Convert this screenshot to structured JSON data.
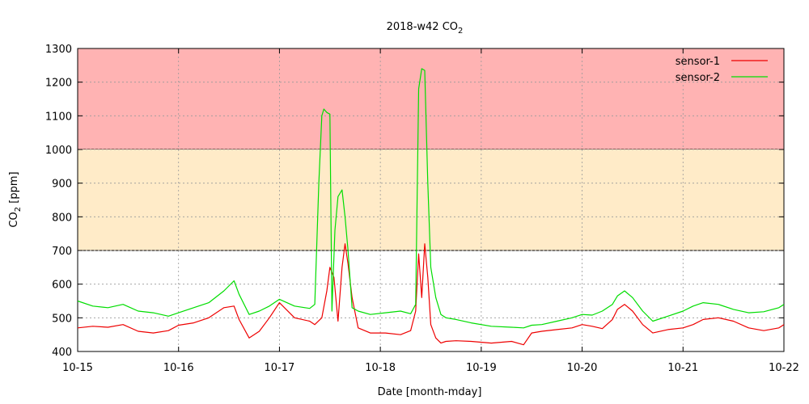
{
  "chart_data": {
    "type": "line",
    "title": "2018-w42 CO",
    "title_sub": "2",
    "xlabel": "Date [month-mday]",
    "ylabel": "CO",
    "ylabel_sub": "2",
    "ylabel_unit": " [ppm]",
    "xlim": [
      "10-15",
      "10-22"
    ],
    "ylim": [
      400,
      1300
    ],
    "x_ticks": [
      "10-15",
      "10-16",
      "10-17",
      "10-18",
      "10-19",
      "10-20",
      "10-21",
      "10-22"
    ],
    "y_ticks": [
      400,
      500,
      600,
      700,
      800,
      900,
      1000,
      1100,
      1200,
      1300
    ],
    "grid": true,
    "legend_position": "top-right",
    "bands": [
      {
        "from": 1000,
        "to": 1300,
        "color": "#ffb3b3"
      },
      {
        "from": 700,
        "to": 1000,
        "color": "#ffebc8"
      }
    ],
    "series": [
      {
        "name": "sensor-1",
        "color": "#ee0000",
        "x": [
          0,
          0.15,
          0.3,
          0.45,
          0.6,
          0.75,
          0.9,
          1.0,
          1.15,
          1.3,
          1.45,
          1.55,
          1.6,
          1.7,
          1.8,
          1.9,
          2.0,
          2.15,
          2.3,
          2.35,
          2.42,
          2.47,
          2.5,
          2.54,
          2.58,
          2.62,
          2.65,
          2.68,
          2.72,
          2.78,
          2.9,
          3.05,
          3.2,
          3.3,
          3.35,
          3.38,
          3.41,
          3.44,
          3.47,
          3.5,
          3.55,
          3.6,
          3.65,
          3.75,
          3.9,
          4.1,
          4.3,
          4.42,
          4.5,
          4.6,
          4.75,
          4.9,
          5.0,
          5.1,
          5.2,
          5.3,
          5.35,
          5.42,
          5.5,
          5.6,
          5.7,
          5.85,
          6.0,
          6.1,
          6.2,
          6.35,
          6.5,
          6.65,
          6.8,
          6.95,
          7.0
        ],
        "y": [
          470,
          475,
          472,
          480,
          460,
          455,
          462,
          478,
          485,
          500,
          530,
          535,
          495,
          440,
          460,
          500,
          545,
          500,
          490,
          480,
          500,
          580,
          650,
          620,
          490,
          650,
          720,
          660,
          560,
          470,
          455,
          455,
          450,
          462,
          520,
          690,
          560,
          720,
          620,
          480,
          440,
          425,
          430,
          432,
          430,
          425,
          430,
          420,
          455,
          460,
          465,
          470,
          480,
          475,
          468,
          495,
          525,
          540,
          520,
          480,
          455,
          465,
          470,
          480,
          495,
          500,
          490,
          470,
          462,
          470,
          480
        ]
      },
      {
        "name": "sensor-2",
        "color": "#00dd00",
        "x": [
          0,
          0.15,
          0.3,
          0.45,
          0.6,
          0.75,
          0.9,
          1.0,
          1.15,
          1.3,
          1.45,
          1.55,
          1.6,
          1.7,
          1.8,
          1.9,
          2.0,
          2.15,
          2.3,
          2.35,
          2.39,
          2.42,
          2.44,
          2.47,
          2.5,
          2.52,
          2.55,
          2.58,
          2.62,
          2.65,
          2.68,
          2.72,
          2.78,
          2.9,
          3.05,
          3.2,
          3.3,
          3.35,
          3.38,
          3.41,
          3.44,
          3.47,
          3.5,
          3.55,
          3.6,
          3.65,
          3.75,
          3.9,
          4.1,
          4.3,
          4.42,
          4.5,
          4.6,
          4.75,
          4.9,
          5.0,
          5.1,
          5.2,
          5.3,
          5.35,
          5.42,
          5.5,
          5.6,
          5.7,
          5.85,
          6.0,
          6.1,
          6.2,
          6.35,
          6.5,
          6.65,
          6.8,
          6.95,
          7.0
        ],
        "y": [
          550,
          535,
          530,
          540,
          520,
          515,
          505,
          515,
          530,
          545,
          580,
          610,
          570,
          510,
          520,
          535,
          555,
          535,
          528,
          540,
          900,
          1100,
          1120,
          1110,
          1105,
          520,
          760,
          860,
          880,
          800,
          700,
          530,
          520,
          510,
          515,
          520,
          512,
          540,
          1180,
          1240,
          1235,
          900,
          650,
          560,
          510,
          500,
          495,
          485,
          475,
          472,
          470,
          478,
          480,
          490,
          500,
          510,
          508,
          520,
          540,
          565,
          580,
          560,
          520,
          490,
          505,
          520,
          535,
          545,
          540,
          525,
          515,
          518,
          530,
          540
        ]
      }
    ]
  }
}
